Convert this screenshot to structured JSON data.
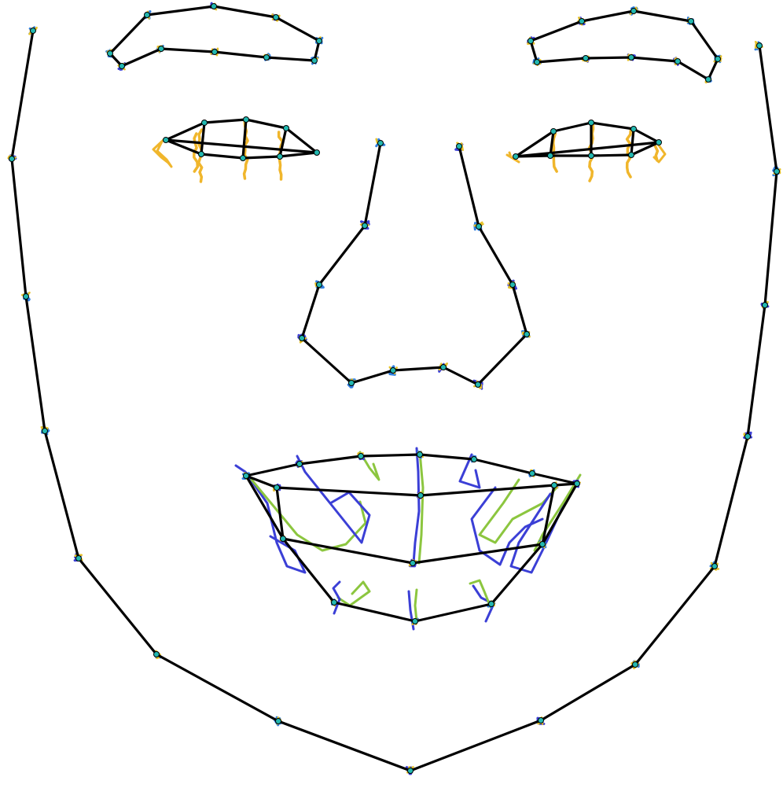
{
  "figure": {
    "type": "facial-landmark-trajectory-diagram",
    "background": "#ffffff",
    "mesh_color": "#000000",
    "marker_color": "#22b8b0",
    "trajectory_palette": [
      "#3b3fd6",
      "#2f7fe0",
      "#22b8b0",
      "#8cc63f",
      "#e6c229",
      "#f0b62c"
    ]
  },
  "regions": [
    {
      "name": "jaw-contour",
      "landmark_count": 17
    },
    {
      "name": "right-eyebrow",
      "landmark_count": 6
    },
    {
      "name": "left-eyebrow",
      "landmark_count": 6
    },
    {
      "name": "right-eye",
      "landmark_count": 8
    },
    {
      "name": "left-eye",
      "landmark_count": 8
    },
    {
      "name": "nose",
      "landmark_count": 12
    },
    {
      "name": "mouth",
      "landmark_count": 18
    }
  ]
}
